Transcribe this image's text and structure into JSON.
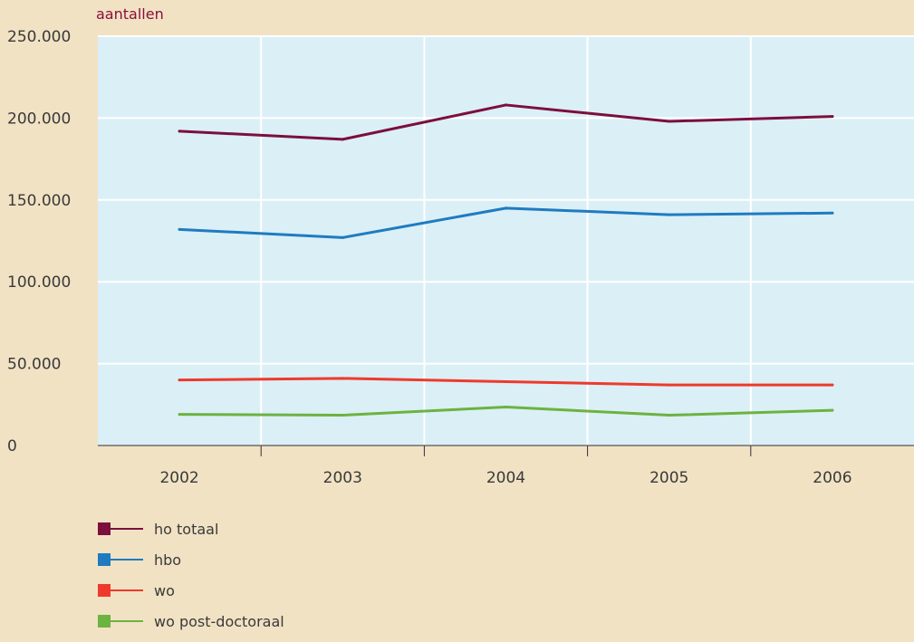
{
  "chart_data": {
    "type": "line",
    "ylabel": "aantallen",
    "categories": [
      "2002",
      "2003",
      "2004",
      "2005",
      "2006"
    ],
    "ylim": [
      0,
      250000
    ],
    "yticks": [
      0,
      50000,
      100000,
      150000,
      200000,
      250000
    ],
    "ytick_labels": [
      "0",
      "50.000",
      "100.000",
      "150.000",
      "200.000",
      "250.000"
    ],
    "grid": true,
    "legend_position": "bottom-left",
    "plot_background": "#dbeff7",
    "series": [
      {
        "name": "ho totaal",
        "color": "#7c0f3c",
        "values": [
          192000,
          187000,
          208000,
          198000,
          201000
        ]
      },
      {
        "name": "hbo",
        "color": "#1f7bc1",
        "values": [
          132000,
          127000,
          145000,
          141000,
          142000
        ]
      },
      {
        "name": "wo",
        "color": "#ee3a2c",
        "values": [
          40000,
          41000,
          39000,
          37000,
          37000
        ]
      },
      {
        "name": "wo post-doctoraal",
        "color": "#6cb33f",
        "values": [
          19000,
          18500,
          23500,
          18500,
          21500
        ]
      }
    ]
  }
}
